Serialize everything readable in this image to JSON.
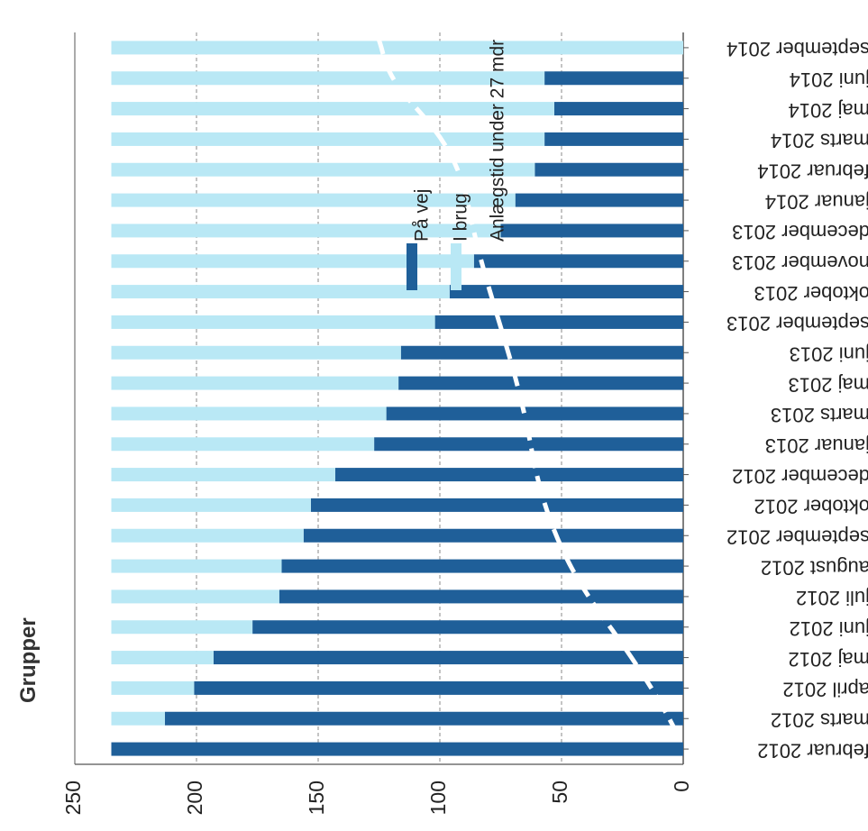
{
  "page": {
    "title": "Grupper"
  },
  "chart_data": {
    "type": "bar",
    "orientation": "horizontal",
    "stacked": true,
    "title": "Grupper",
    "xlim": [
      0,
      250
    ],
    "x_ticks": [
      0,
      50,
      100,
      150,
      200,
      250
    ],
    "grid": true,
    "categories": [
      "februar 2012",
      "marts 2012",
      "april 2012",
      "maj 2012",
      "juni 2012",
      "juli 2012",
      "august 2012",
      "september 2012",
      "oktober 2012",
      "december 2012",
      "januar 2013",
      "marts 2013",
      "maj 2013",
      "juni 2013",
      "september 2013",
      "oktober 2013",
      "november 2013",
      "december 2013",
      "januar 2014",
      "februar 2014",
      "marts 2014",
      "maj 2014",
      "juni 2014",
      "september 2014"
    ],
    "series": [
      {
        "name": "På vej",
        "color": "#1f5f99",
        "values": [
          235,
          213,
          201,
          193,
          177,
          166,
          165,
          156,
          153,
          143,
          127,
          122,
          117,
          116,
          102,
          96,
          86,
          75,
          69,
          61,
          57,
          53,
          57,
          0
        ]
      },
      {
        "name": "I brug",
        "color": "#b9e8f5",
        "values": [
          0,
          22,
          34,
          42,
          58,
          69,
          70,
          79,
          82,
          92,
          108,
          113,
          118,
          119,
          133,
          139,
          149,
          160,
          166,
          174,
          178,
          182,
          178,
          235
        ]
      }
    ],
    "annotations": [
      {
        "text": "Anlægstid under 27 mdr",
        "style": "white curved line"
      }
    ],
    "legend": {
      "position": "inside-center"
    }
  }
}
